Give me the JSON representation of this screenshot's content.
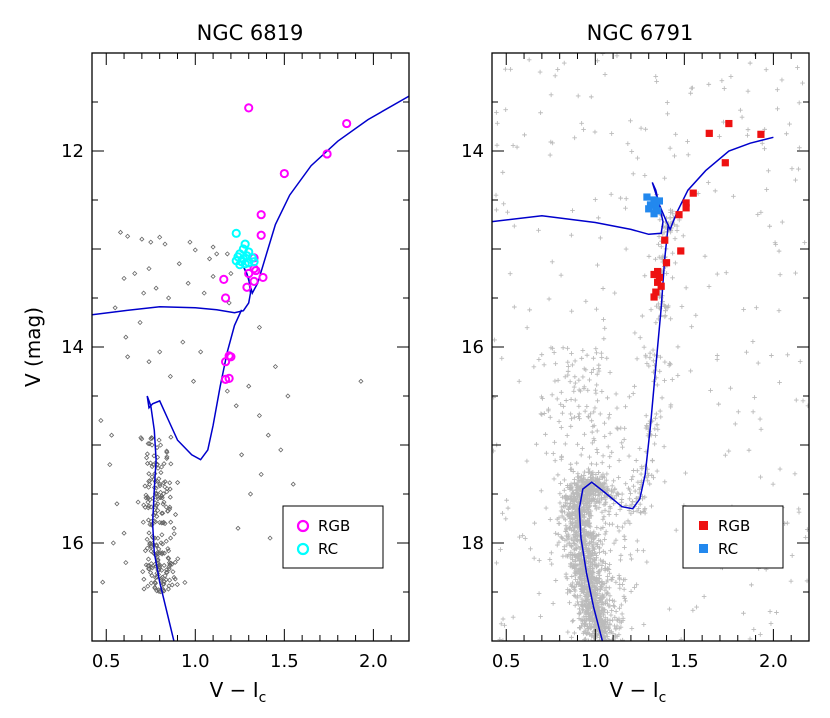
{
  "chart_data": [
    {
      "type": "scatter",
      "title": "NGC 6819",
      "xlabel": "V − I",
      "xlabel_sub": "c",
      "ylabel": "V (mag)",
      "xlim": [
        0.42,
        2.2
      ],
      "ylim": [
        17.0,
        11.0
      ],
      "y_inverted": true,
      "xticks": [
        0.5,
        1.0,
        1.5,
        2.0
      ],
      "xtick_labels": [
        "0.5",
        "1.0",
        "1.5",
        "2.0"
      ],
      "yticks": [
        12,
        14,
        16
      ],
      "ytick_labels": [
        "12",
        "14",
        "16"
      ],
      "legend": {
        "position": "bottom-right",
        "entries": [
          "RGB",
          "RC"
        ]
      },
      "series": [
        {
          "name": "RGB",
          "marker": "open-circle",
          "color": "#ff00ff",
          "points": [
            [
              1.3,
              11.56
            ],
            [
              1.85,
              11.72
            ],
            [
              1.74,
              12.03
            ],
            [
              1.5,
              12.23
            ],
            [
              1.37,
              12.65
            ],
            [
              1.37,
              12.86
            ],
            [
              1.33,
              13.09
            ],
            [
              1.33,
              13.2
            ],
            [
              1.34,
              13.22
            ],
            [
              1.3,
              13.25
            ],
            [
              1.38,
              13.29
            ],
            [
              1.16,
              13.31
            ],
            [
              1.33,
              13.33
            ],
            [
              1.29,
              13.39
            ],
            [
              1.17,
              13.5
            ],
            [
              1.19,
              14.09
            ],
            [
              1.2,
              14.1
            ],
            [
              1.17,
              14.15
            ],
            [
              1.19,
              14.32
            ],
            [
              1.17,
              14.33
            ]
          ]
        },
        {
          "name": "RC",
          "marker": "open-circle",
          "color": "#00ffff",
          "points": [
            [
              1.23,
              12.84
            ],
            [
              1.28,
              12.95
            ],
            [
              1.27,
              13.0
            ],
            [
              1.3,
              13.03
            ],
            [
              1.25,
              13.05
            ],
            [
              1.29,
              13.07
            ],
            [
              1.24,
              13.08
            ],
            [
              1.32,
              13.09
            ],
            [
              1.27,
              13.1
            ],
            [
              1.23,
              13.12
            ],
            [
              1.26,
              13.13
            ],
            [
              1.3,
              13.14
            ],
            [
              1.28,
              13.15
            ],
            [
              1.33,
              13.13
            ],
            [
              1.25,
              13.16
            ]
          ]
        },
        {
          "name": "",
          "marker": "small-diamond",
          "color": "#666666",
          "points": [
            [
              0.58,
              12.83
            ],
            [
              0.62,
              12.87
            ],
            [
              0.7,
              12.9
            ],
            [
              0.75,
              12.93
            ],
            [
              0.8,
              12.88
            ],
            [
              0.83,
              12.95
            ],
            [
              0.97,
              12.93
            ],
            [
              1.0,
              13.01
            ],
            [
              1.1,
              12.98
            ],
            [
              1.12,
              13.05
            ],
            [
              1.08,
              13.1
            ],
            [
              0.91,
              13.15
            ],
            [
              0.74,
              13.2
            ],
            [
              0.66,
              13.25
            ],
            [
              0.6,
              13.3
            ],
            [
              0.71,
              13.45
            ],
            [
              0.78,
              13.4
            ],
            [
              0.85,
              13.5
            ],
            [
              0.96,
              13.35
            ],
            [
              1.05,
              13.45
            ],
            [
              1.18,
              13.05
            ],
            [
              1.19,
              13.55
            ],
            [
              1.2,
              13.25
            ],
            [
              1.1,
              13.28
            ],
            [
              0.55,
              13.6
            ],
            [
              0.61,
              13.9
            ],
            [
              0.69,
              13.75
            ],
            [
              0.74,
              14.15
            ],
            [
              0.62,
              14.1
            ],
            [
              0.8,
              14.05
            ],
            [
              0.93,
              13.95
            ],
            [
              1.03,
              14.05
            ],
            [
              0.86,
              14.3
            ],
            [
              0.99,
              14.35
            ],
            [
              1.18,
              14.45
            ],
            [
              1.23,
              14.6
            ],
            [
              1.3,
              14.4
            ],
            [
              1.36,
              14.7
            ],
            [
              1.41,
              14.9
            ],
            [
              1.26,
              15.1
            ],
            [
              1.37,
              15.3
            ],
            [
              1.31,
              15.5
            ],
            [
              1.48,
              15.05
            ],
            [
              1.55,
              15.4
            ],
            [
              1.61,
              15.65
            ],
            [
              1.93,
              14.35
            ],
            [
              1.42,
              15.95
            ],
            [
              1.59,
              16.1
            ],
            [
              1.24,
              15.85
            ],
            [
              0.47,
              14.75
            ],
            [
              0.53,
              14.9
            ],
            [
              0.52,
              15.2
            ],
            [
              0.56,
              15.6
            ],
            [
              0.6,
              15.9
            ],
            [
              0.54,
              16.0
            ],
            [
              0.61,
              16.2
            ],
            [
              0.48,
              16.4
            ],
            [
              1.36,
              13.8
            ],
            [
              1.45,
              14.2
            ],
            [
              1.52,
              14.5
            ]
          ]
        }
      ],
      "isochrone": {
        "color": "#0000cc",
        "points": [
          [
            0.42,
            13.67
          ],
          [
            0.6,
            13.63
          ],
          [
            0.8,
            13.59
          ],
          [
            1.0,
            13.6
          ],
          [
            1.12,
            13.62
          ],
          [
            1.22,
            13.65
          ],
          [
            1.27,
            13.63
          ],
          [
            1.3,
            13.55
          ],
          [
            1.31,
            13.45
          ],
          [
            1.3,
            13.3
          ],
          [
            1.27,
            13.18
          ],
          [
            1.29,
            13.25
          ],
          [
            1.32,
            13.45
          ],
          [
            1.35,
            13.35
          ],
          [
            1.4,
            13.05
          ],
          [
            1.45,
            12.75
          ],
          [
            1.53,
            12.45
          ],
          [
            1.65,
            12.15
          ],
          [
            1.8,
            11.9
          ],
          [
            1.97,
            11.68
          ],
          [
            2.2,
            11.44
          ]
        ]
      },
      "isochrone_lower": {
        "color": "#0000cc",
        "points": [
          [
            1.26,
            13.62
          ],
          [
            1.22,
            13.78
          ],
          [
            1.18,
            14.05
          ],
          [
            1.14,
            14.4
          ],
          [
            1.1,
            14.8
          ],
          [
            1.07,
            15.05
          ],
          [
            1.03,
            15.15
          ],
          [
            0.98,
            15.1
          ],
          [
            0.9,
            14.95
          ],
          [
            0.85,
            14.75
          ],
          [
            0.8,
            14.55
          ],
          [
            0.76,
            14.58
          ],
          [
            0.74,
            14.62
          ],
          [
            0.73,
            14.5
          ],
          [
            0.75,
            14.6
          ],
          [
            0.77,
            14.85
          ],
          [
            0.78,
            15.15
          ],
          [
            0.77,
            15.45
          ],
          [
            0.76,
            15.8
          ],
          [
            0.77,
            16.1
          ],
          [
            0.8,
            16.4
          ],
          [
            0.84,
            16.7
          ],
          [
            0.88,
            17.0
          ]
        ]
      }
    },
    {
      "type": "scatter",
      "title": "NGC 6791",
      "xlabel": "V − I",
      "xlabel_sub": "c",
      "ylabel": "",
      "xlim": [
        0.42,
        2.2
      ],
      "ylim": [
        19.0,
        13.0
      ],
      "y_inverted": true,
      "xticks": [
        0.5,
        1.0,
        1.5,
        2.0
      ],
      "xtick_labels": [
        "0.5",
        "1.0",
        "1.5",
        "2.0"
      ],
      "yticks": [
        14,
        16,
        18
      ],
      "ytick_labels": [
        "14",
        "16",
        "18"
      ],
      "legend": {
        "position": "bottom-right",
        "entries": [
          "RGB",
          "RC"
        ]
      },
      "series": [
        {
          "name": "RGB",
          "marker": "filled-square",
          "color": "#ee1111",
          "points": [
            [
              1.75,
              13.72
            ],
            [
              1.64,
              13.82
            ],
            [
              1.93,
              13.83
            ],
            [
              1.73,
              14.12
            ],
            [
              1.55,
              14.43
            ],
            [
              1.51,
              14.53
            ],
            [
              1.51,
              14.58
            ],
            [
              1.47,
              14.65
            ],
            [
              1.39,
              14.91
            ],
            [
              1.48,
              15.02
            ],
            [
              1.4,
              15.14
            ],
            [
              1.35,
              15.23
            ],
            [
              1.33,
              15.26
            ],
            [
              1.36,
              15.29
            ],
            [
              1.35,
              15.34
            ],
            [
              1.37,
              15.38
            ],
            [
              1.34,
              15.44
            ],
            [
              1.33,
              15.49
            ]
          ]
        },
        {
          "name": "RC",
          "marker": "filled-square",
          "color": "#2288ee",
          "points": [
            [
              1.29,
              14.47
            ],
            [
              1.33,
              14.5
            ],
            [
              1.36,
              14.51
            ],
            [
              1.31,
              14.55
            ],
            [
              1.34,
              14.57
            ],
            [
              1.3,
              14.59
            ],
            [
              1.35,
              14.61
            ],
            [
              1.33,
              14.64
            ]
          ]
        }
      ],
      "field_stars": {
        "marker": "plus",
        "color": "#bbbbbb",
        "count": 2200
      },
      "isochrone": {
        "color": "#0000cc",
        "points": [
          [
            0.42,
            14.72
          ],
          [
            0.7,
            14.66
          ],
          [
            1.0,
            14.73
          ],
          [
            1.2,
            14.8
          ],
          [
            1.3,
            14.85
          ],
          [
            1.37,
            14.84
          ],
          [
            1.38,
            14.72
          ],
          [
            1.36,
            14.56
          ],
          [
            1.34,
            14.4
          ],
          [
            1.32,
            14.32
          ],
          [
            1.36,
            14.55
          ],
          [
            1.4,
            14.72
          ],
          [
            1.42,
            14.8
          ],
          [
            1.46,
            14.62
          ],
          [
            1.52,
            14.4
          ],
          [
            1.62,
            14.2
          ],
          [
            1.75,
            14.0
          ],
          [
            1.87,
            13.92
          ],
          [
            2.0,
            13.86
          ]
        ]
      },
      "isochrone_lower": {
        "color": "#0000cc",
        "points": [
          [
            1.41,
            14.75
          ],
          [
            1.39,
            15.1
          ],
          [
            1.37,
            15.6
          ],
          [
            1.34,
            16.2
          ],
          [
            1.31,
            16.8
          ],
          [
            1.28,
            17.3
          ],
          [
            1.25,
            17.55
          ],
          [
            1.21,
            17.65
          ],
          [
            1.15,
            17.63
          ],
          [
            1.05,
            17.48
          ],
          [
            0.98,
            17.38
          ],
          [
            0.93,
            17.45
          ],
          [
            0.91,
            17.65
          ],
          [
            0.92,
            17.95
          ],
          [
            0.95,
            18.3
          ],
          [
            0.99,
            18.65
          ],
          [
            1.04,
            19.0
          ]
        ]
      }
    }
  ]
}
